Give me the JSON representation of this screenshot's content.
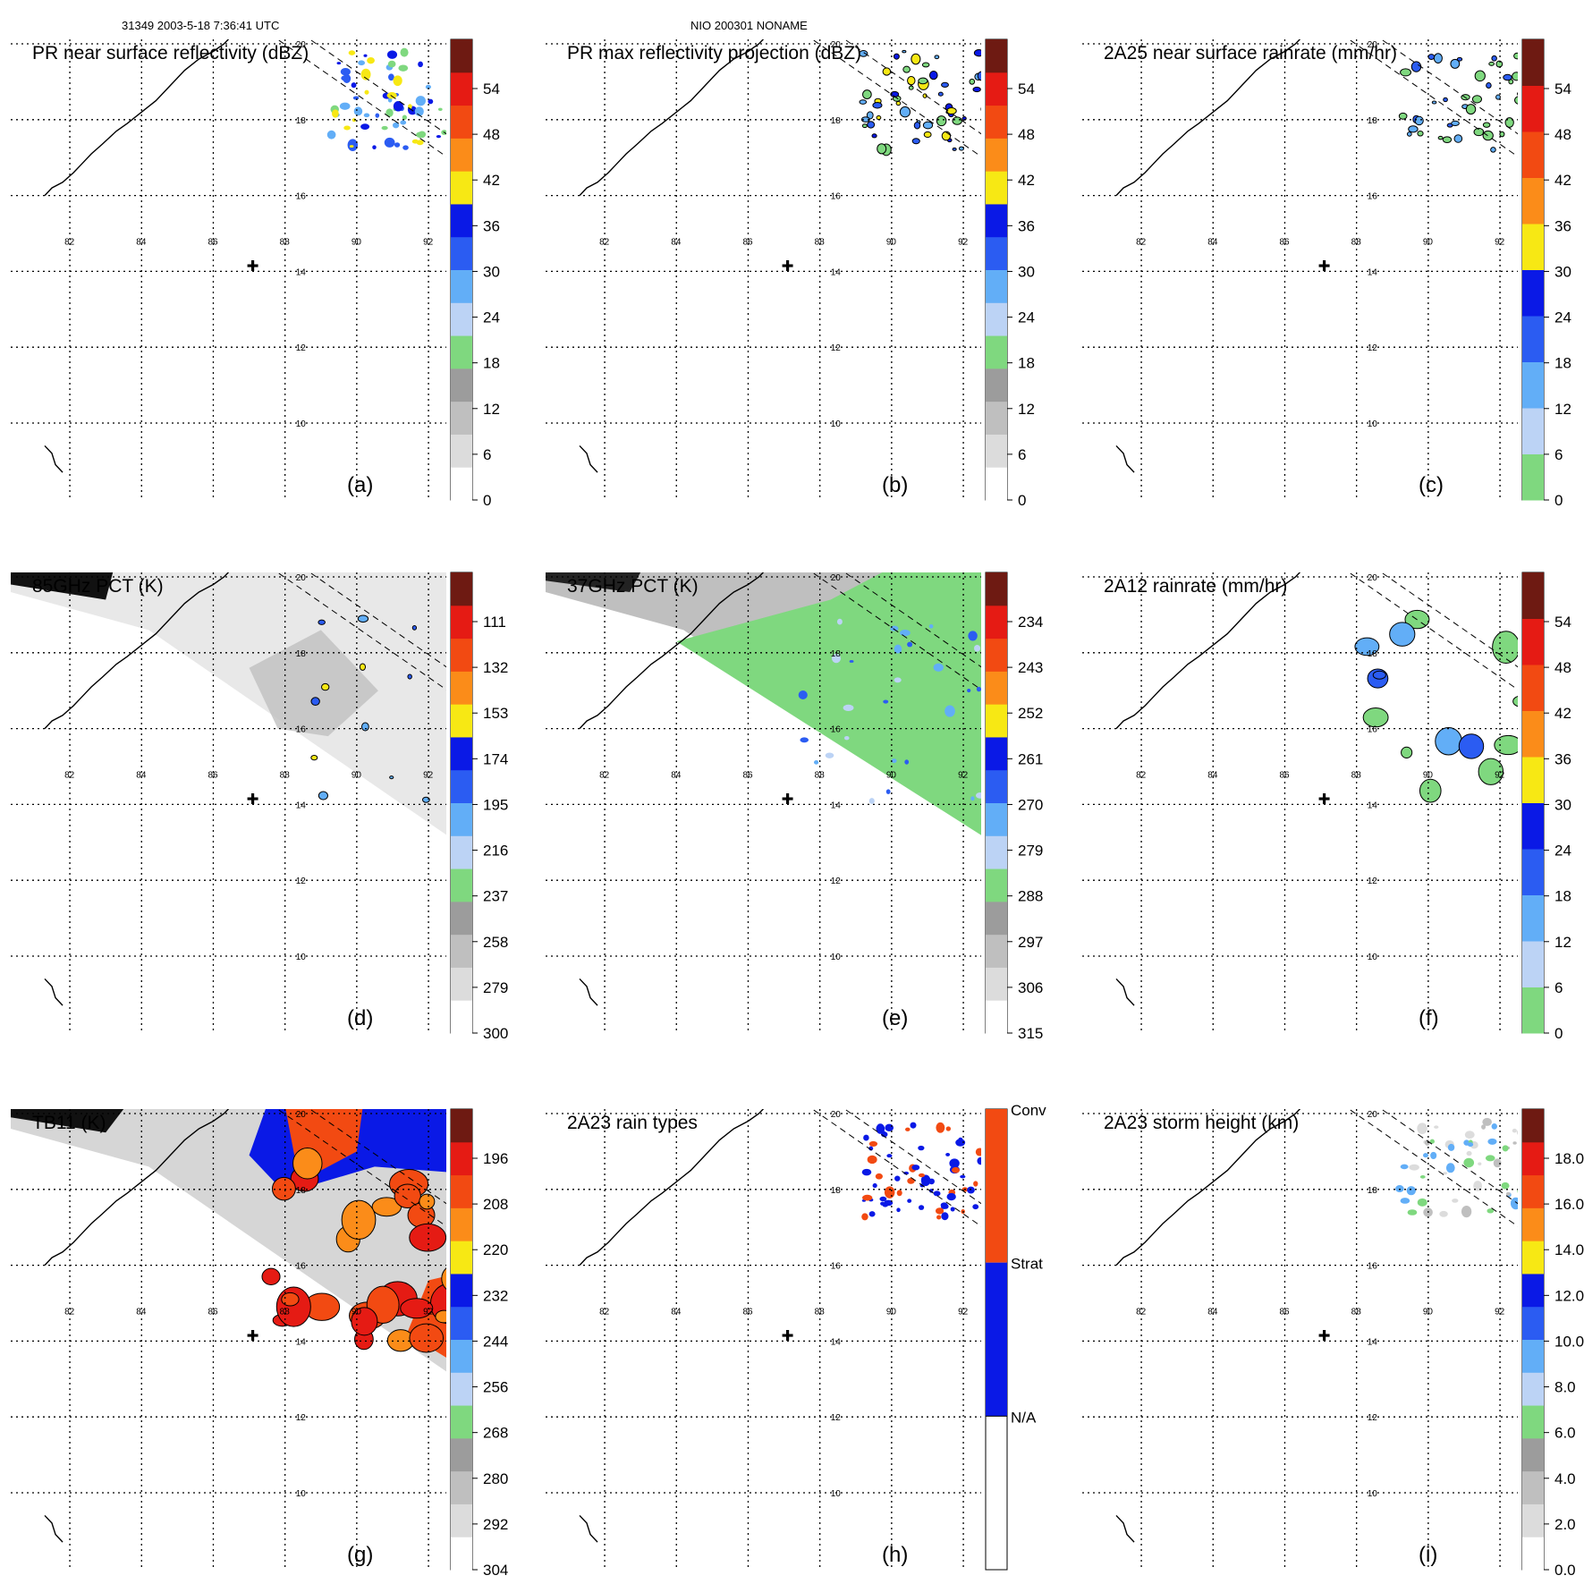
{
  "header": {
    "orbit_line": "31349 2003-5-18 7:36:41 UTC",
    "storm_line": "NIO 200301 NONAME"
  },
  "grid": {
    "lon_labels": [
      "82",
      "84",
      "86",
      "88",
      "90",
      "92"
    ],
    "lat_labels": [
      "20",
      "18",
      "16",
      "14",
      "12",
      "10"
    ]
  },
  "colors": {
    "dark_red": "#6e1a12",
    "red": "#e51b14",
    "red_orange": "#f24a12",
    "orange": "#fb8c19",
    "yellow": "#f7e814",
    "dark_blue": "#0a19e6",
    "blue": "#2b5cf2",
    "light_blue": "#62aef7",
    "pale_blue": "#bcd3f5",
    "green": "#7fd87f",
    "gray_dark": "#9c9c9c",
    "gray_mid": "#bfbfbf",
    "gray_light": "#dcdcdc",
    "white": "#ffffff",
    "map_gray": "#e8e8e8",
    "black": "#000000"
  },
  "panels": [
    {
      "id": "a",
      "title": "PR near surface reflectivity (dBZ)",
      "letter": "(a)",
      "ticks": [
        "54",
        "48",
        "42",
        "36",
        "30",
        "24",
        "18",
        "12",
        "6",
        "0"
      ]
    },
    {
      "id": "b",
      "title": "PR max reflectivity projection (dBZ)",
      "letter": "(b)",
      "ticks": [
        "54",
        "48",
        "42",
        "36",
        "30",
        "24",
        "18",
        "12",
        "6",
        "0"
      ]
    },
    {
      "id": "c",
      "title": "2A25 near surface rainrate (mm/hr)",
      "letter": "(c)",
      "ticks": [
        "54",
        "48",
        "42",
        "36",
        "30",
        "24",
        "18",
        "12",
        "6",
        "0"
      ]
    },
    {
      "id": "d",
      "title": "85GHz PCT (K)",
      "letter": "(d)",
      "ticks": [
        "111",
        "132",
        "153",
        "174",
        "195",
        "216",
        "237",
        "258",
        "279",
        "300"
      ]
    },
    {
      "id": "e",
      "title": "37GHz PCT (K)",
      "letter": "(e)",
      "ticks": [
        "234",
        "243",
        "252",
        "261",
        "270",
        "279",
        "288",
        "297",
        "306",
        "315"
      ]
    },
    {
      "id": "f",
      "title": "2A12 rainrate (mm/hr)",
      "letter": "(f)",
      "ticks": [
        "54",
        "48",
        "42",
        "36",
        "30",
        "24",
        "18",
        "12",
        "6",
        "0"
      ]
    },
    {
      "id": "g",
      "title": "TB11 (K)",
      "letter": "(g)",
      "ticks": [
        "196",
        "208",
        "220",
        "232",
        "244",
        "256",
        "268",
        "280",
        "292",
        "304"
      ]
    },
    {
      "id": "h",
      "title": "2A23 rain types",
      "letter": "(h)",
      "ticks": [
        "Conv",
        "Strat",
        "N/A"
      ]
    },
    {
      "id": "i",
      "title": "2A23 storm height (km)",
      "letter": "(i)",
      "ticks": [
        "18.0",
        "16.0",
        "14.0",
        "12.0",
        "10.0",
        "8.0",
        "6.0",
        "4.0",
        "2.0",
        "0.0"
      ]
    }
  ]
}
